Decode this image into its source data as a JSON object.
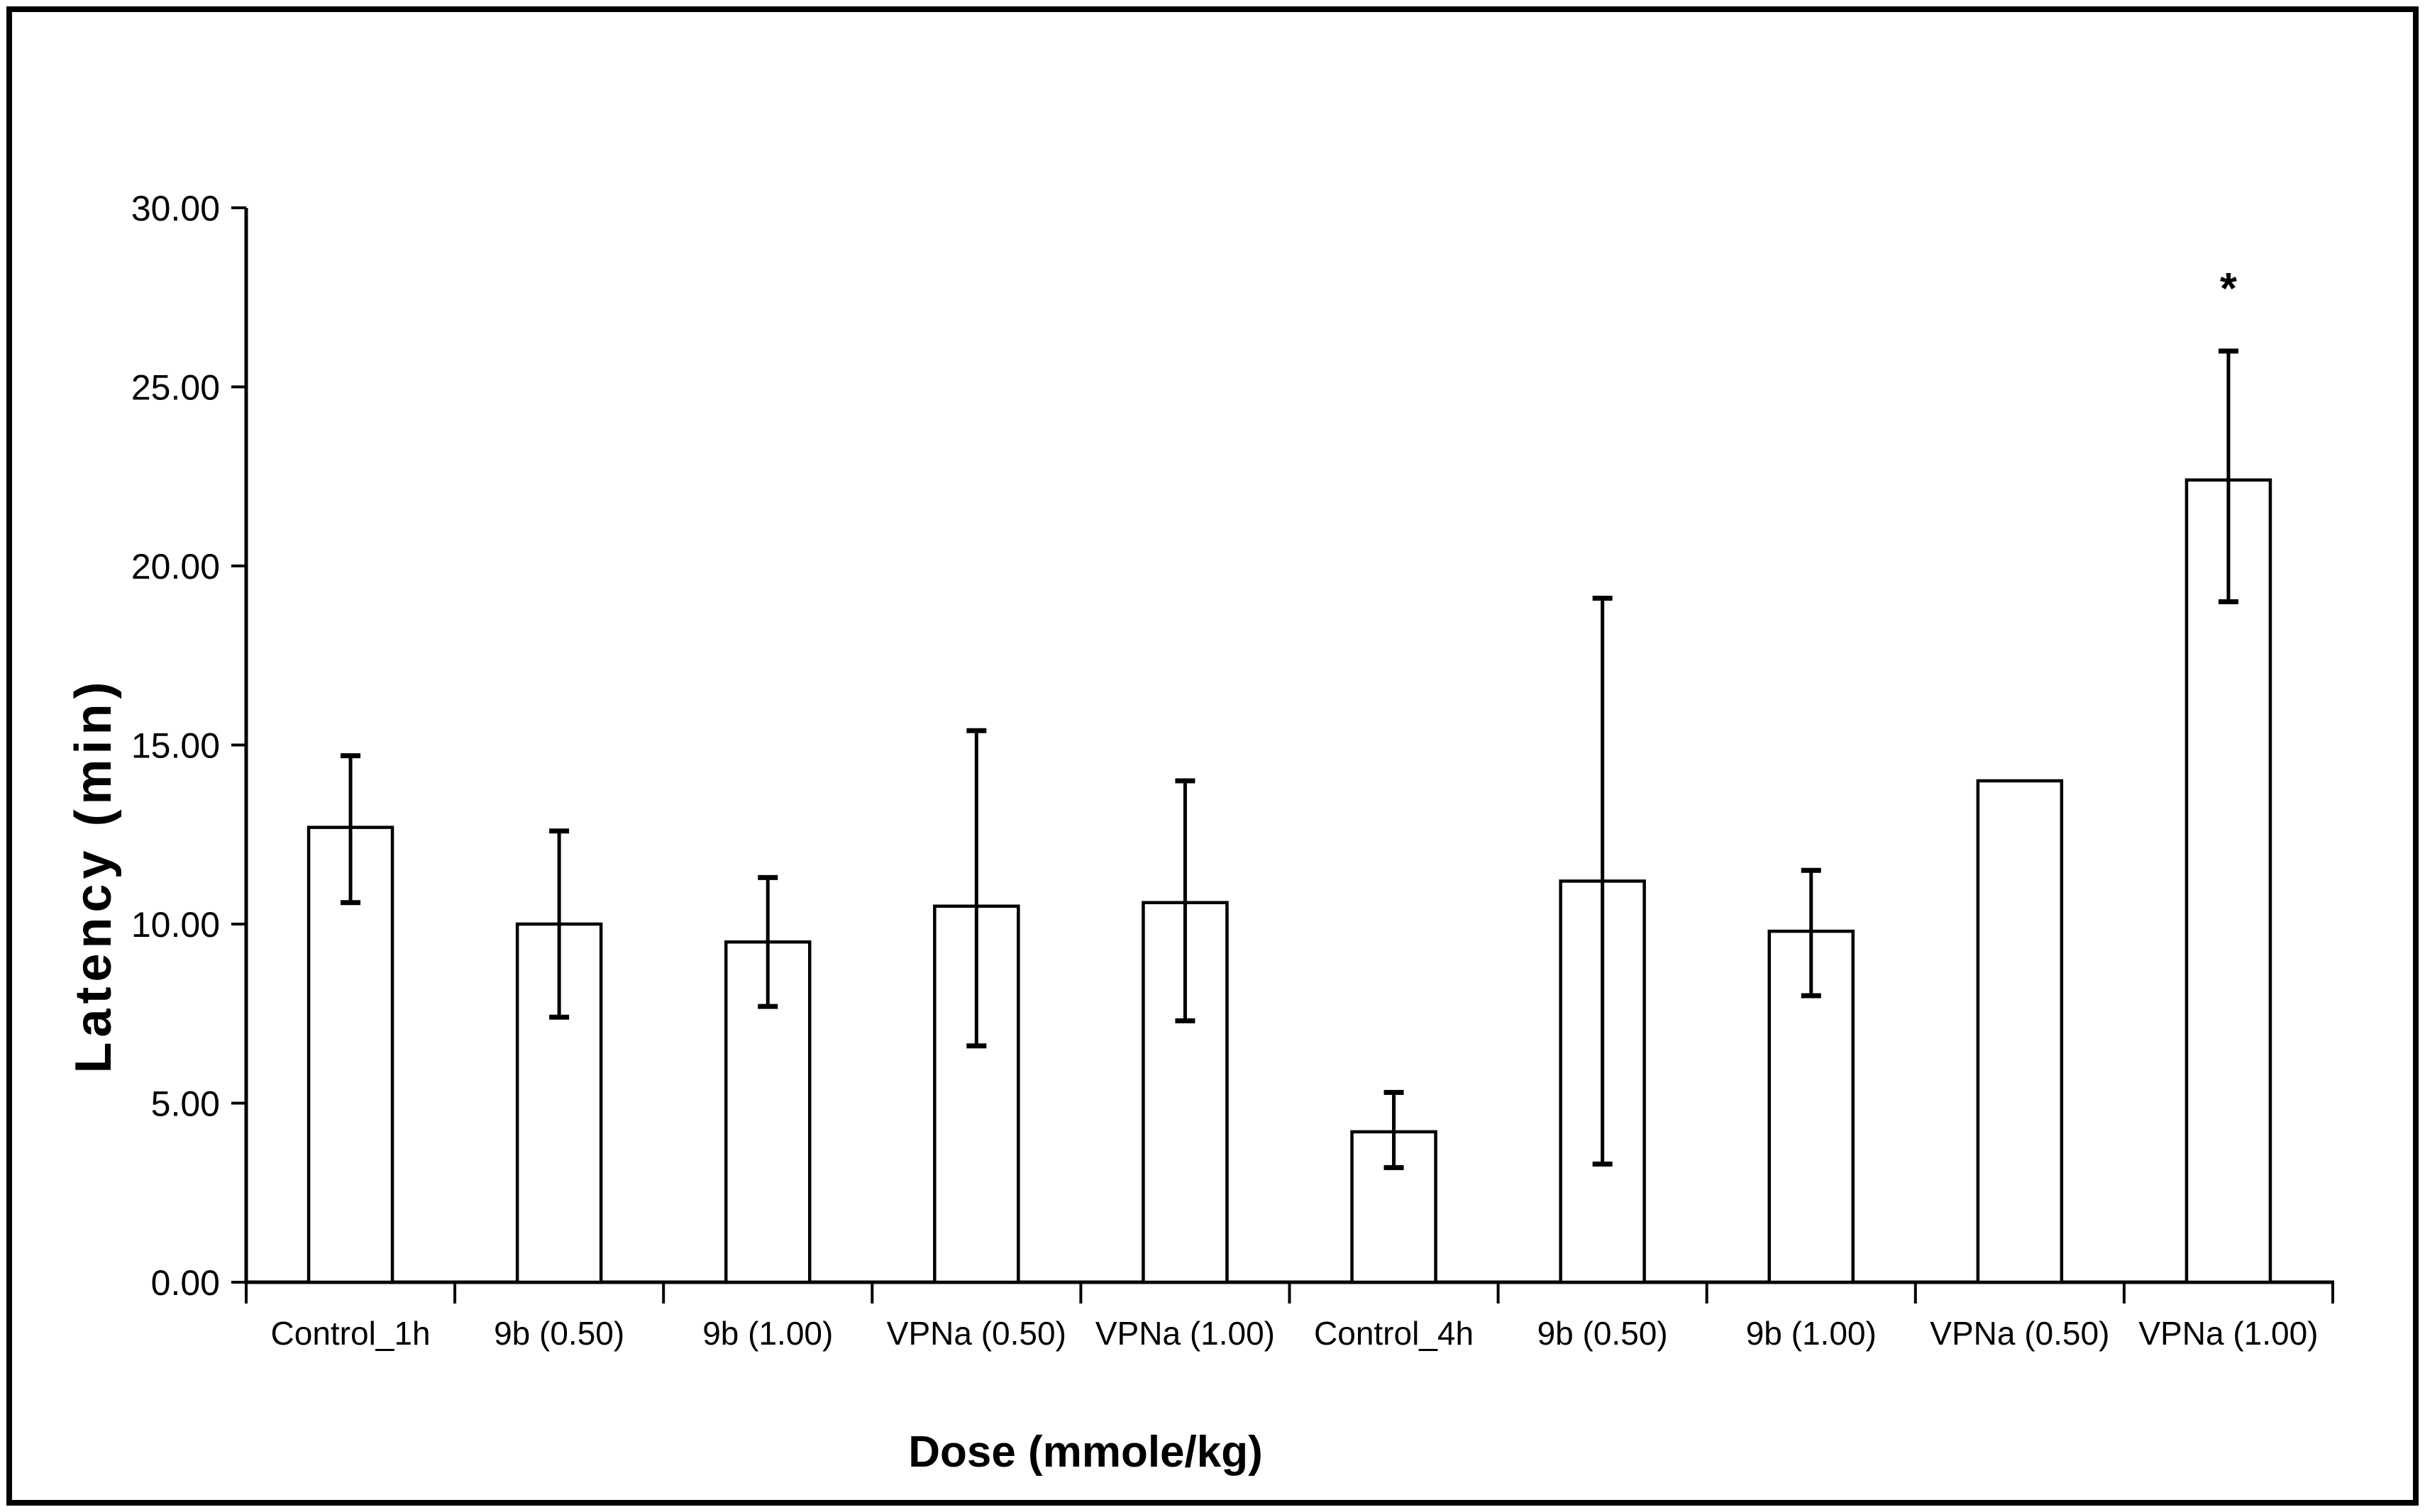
{
  "figure": {
    "background": "#ffffff",
    "frame_color": "#000000",
    "line_color": "#000000",
    "bar_fill": "#ffffff"
  },
  "chart_data": {
    "type": "bar",
    "title": "",
    "xlabel": "Dose (mmole/kg)",
    "ylabel": "Latency (min)",
    "categories": [
      "Control_1h",
      "9b (0.50)",
      "9b (1.00)",
      "VPNa (0.50)",
      "VPNa (1.00)",
      "Control_4h",
      "9b (0.50)",
      "9b (1.00)",
      "VPNa (0.50)",
      "VPNa (1.00)"
    ],
    "values": [
      12.7,
      10.0,
      9.5,
      10.5,
      10.6,
      4.2,
      11.2,
      9.8,
      14.0,
      22.4
    ],
    "error_upper": [
      14.7,
      12.6,
      11.3,
      15.4,
      14.0,
      5.3,
      19.1,
      11.5,
      null,
      26.0
    ],
    "error_lower": [
      10.6,
      7.4,
      7.7,
      6.6,
      7.3,
      3.2,
      3.3,
      8.0,
      null,
      19.0
    ],
    "ylim": [
      0,
      30
    ],
    "y_ticks": [
      {
        "value": 0,
        "label": "0.00"
      },
      {
        "value": 5,
        "label": "5.00"
      },
      {
        "value": 10,
        "label": "10.00"
      },
      {
        "value": 15,
        "label": "15.00"
      },
      {
        "value": 20,
        "label": "20.00"
      },
      {
        "value": 25,
        "label": "25.00"
      },
      {
        "value": 30,
        "label": "30.00"
      }
    ],
    "grid": "off",
    "legend": "none",
    "annotations": [
      {
        "text": "*",
        "category_index": 9,
        "y_value": 28.0
      }
    ]
  }
}
